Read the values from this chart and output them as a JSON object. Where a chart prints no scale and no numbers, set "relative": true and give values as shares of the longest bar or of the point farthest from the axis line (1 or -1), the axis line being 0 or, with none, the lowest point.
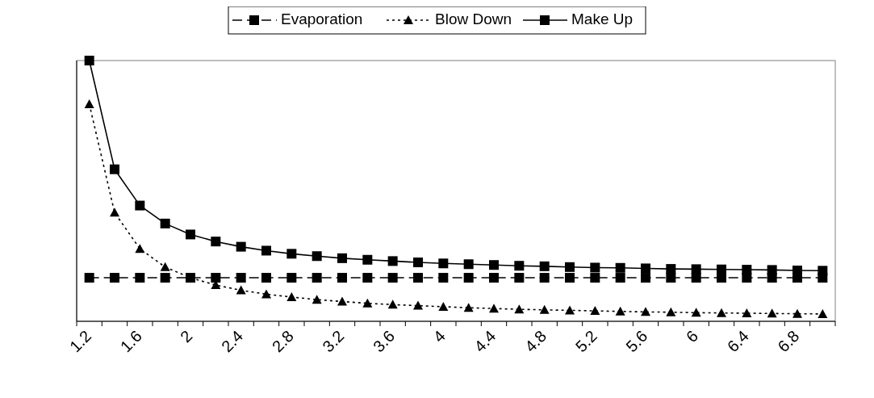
{
  "chart_data": {
    "type": "line",
    "relative": true,
    "categories": [
      "1.2",
      null,
      "1.6",
      null,
      "2",
      null,
      "2.4",
      null,
      "2.8",
      null,
      "3.2",
      null,
      "3.6",
      null,
      "4",
      null,
      "4.4",
      null,
      "4.8",
      null,
      "5.2",
      null,
      "5.6",
      null,
      "6",
      null,
      "6.4",
      null,
      "6.8",
      null
    ],
    "series": [
      {
        "name": "Evaporation",
        "color": "#000000",
        "marker": "square",
        "line_style": "dashed",
        "values": [
          0.167,
          0.167,
          0.167,
          0.167,
          0.167,
          0.167,
          0.167,
          0.167,
          0.167,
          0.167,
          0.167,
          0.167,
          0.167,
          0.167,
          0.167,
          0.167,
          0.167,
          0.167,
          0.167,
          0.167,
          0.167,
          0.167,
          0.167,
          0.167,
          0.167,
          0.167,
          0.167,
          0.167,
          0.167,
          0.167
        ]
      },
      {
        "name": "Blow Down",
        "color": "#000000",
        "marker": "triangle",
        "line_style": "dotted",
        "values": [
          0.833,
          0.417,
          0.278,
          0.208,
          0.167,
          0.139,
          0.119,
          0.104,
          0.093,
          0.083,
          0.076,
          0.069,
          0.064,
          0.06,
          0.056,
          0.052,
          0.049,
          0.046,
          0.044,
          0.042,
          0.04,
          0.038,
          0.036,
          0.035,
          0.033,
          0.032,
          0.031,
          0.03,
          0.029,
          0.028
        ]
      },
      {
        "name": "Make Up",
        "color": "#000000",
        "marker": "square",
        "line_style": "solid",
        "values": [
          1,
          0.583,
          0.444,
          0.375,
          0.333,
          0.306,
          0.286,
          0.271,
          0.259,
          0.25,
          0.242,
          0.236,
          0.231,
          0.226,
          0.222,
          0.219,
          0.216,
          0.213,
          0.211,
          0.208,
          0.206,
          0.205,
          0.203,
          0.201,
          0.2,
          0.199,
          0.198,
          0.197,
          0.195,
          0.194
        ]
      }
    ],
    "legend": "top"
  }
}
